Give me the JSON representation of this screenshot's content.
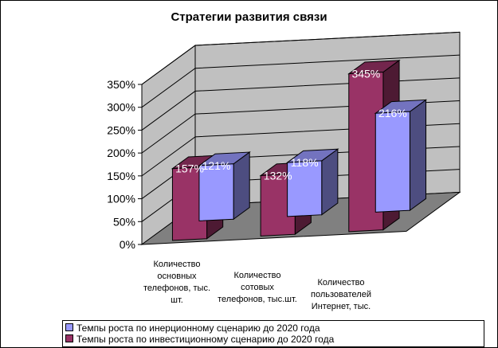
{
  "chart_data": {
    "type": "bar",
    "title": "Стратегии развития связи",
    "categories": [
      [
        "Количество",
        "основных",
        "телефонов, тыс.",
        "шт."
      ],
      [
        "Количество",
        "сотовых",
        "телефонов, тыс.шт."
      ],
      [
        "Количество",
        "пользователей",
        "Интернет, тыс."
      ]
    ],
    "series": [
      {
        "name": "Темпы роста по инерционному сценарию до 2020 года",
        "values": [
          121,
          118,
          216
        ],
        "labels": [
          "121%",
          "118%",
          "216%"
        ],
        "color": "#9999ff"
      },
      {
        "name": "Темпы роста по инвестиционному сценарию до 2020 года",
        "values": [
          157,
          132,
          345
        ],
        "labels": [
          "157%",
          "132%",
          "345%"
        ],
        "color": "#993366"
      }
    ],
    "yticks": [
      "0%",
      "50%",
      "100%",
      "150%",
      "200%",
      "250%",
      "300%",
      "350%"
    ],
    "ylim": [
      0,
      350
    ],
    "grid": true,
    "legend_position": "bottom",
    "wall_color": "#c0c0c0",
    "floor_color": "#808080"
  }
}
